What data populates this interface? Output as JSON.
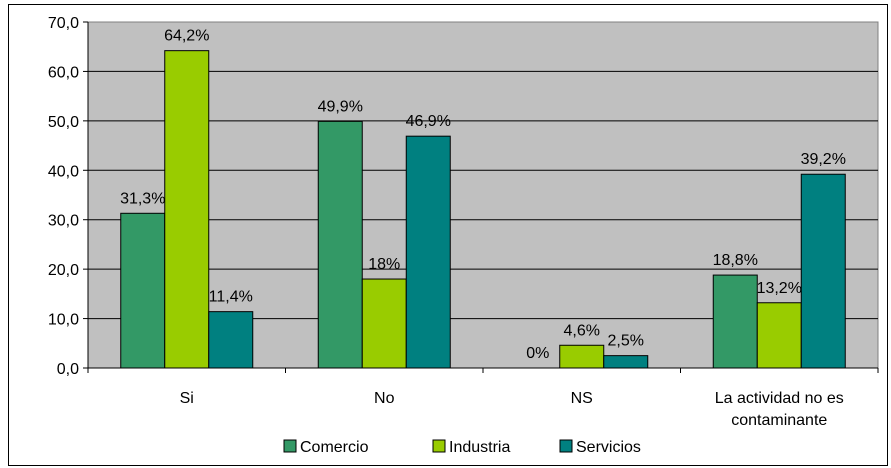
{
  "chart_data": {
    "type": "bar",
    "categories": [
      "Si",
      "No",
      "NS",
      "La actividad no es contaminante"
    ],
    "category_lines": [
      [
        "Si"
      ],
      [
        "No"
      ],
      [
        "NS"
      ],
      [
        "La actividad no es",
        "contaminante"
      ]
    ],
    "series": [
      {
        "name": "Comercio",
        "color": "#339966",
        "values": [
          31.3,
          49.9,
          0,
          18.8
        ],
        "labels": [
          "31,3%",
          "49,9%",
          "0%",
          "18,8%"
        ]
      },
      {
        "name": "Industria",
        "color": "#99cc00",
        "values": [
          64.2,
          18,
          4.6,
          13.2
        ],
        "labels": [
          "64,2%",
          "18%",
          "4,6%",
          "13,2%"
        ]
      },
      {
        "name": "Servicios",
        "color": "#008080",
        "values": [
          11.4,
          46.9,
          2.5,
          39.2
        ],
        "labels": [
          "11,4%",
          "46,9%",
          "2,5%",
          "39,2%"
        ]
      }
    ],
    "yticks": [
      "0,0",
      "10,0",
      "20,0",
      "30,0",
      "40,0",
      "50,0",
      "60,0",
      "70,0"
    ],
    "ylim": [
      0,
      70
    ],
    "grid": true,
    "plot_background": "#c0c0c0",
    "legend_position": "bottom",
    "title": "",
    "xlabel": "",
    "ylabel": ""
  }
}
